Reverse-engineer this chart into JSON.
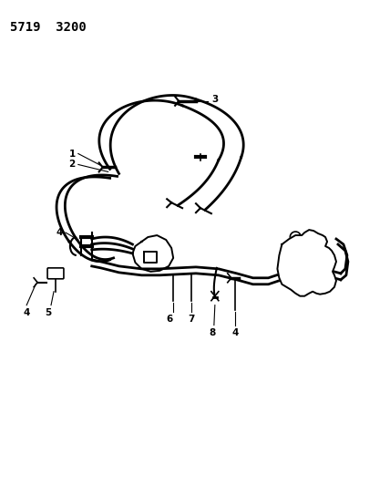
{
  "title": "5719  3200",
  "bg": "#ffffff",
  "lc": "#000000",
  "label_fs": 7.5,
  "title_fs": 10
}
